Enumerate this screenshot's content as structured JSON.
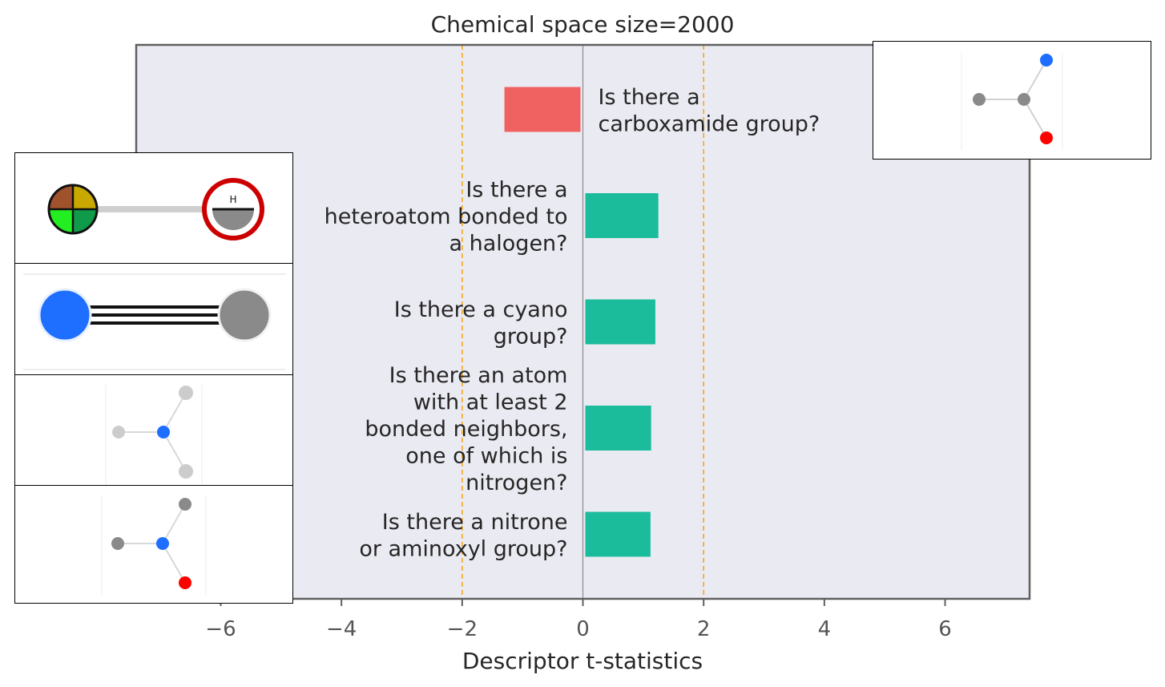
{
  "chart_data": {
    "type": "bar",
    "orientation": "horizontal",
    "title": "Chemical space size=2000",
    "xlabel": "Descriptor t-statistics",
    "ylabel": "",
    "xlim": [
      -7.4,
      7.4
    ],
    "xticks": [
      -6,
      -4,
      -2,
      0,
      2,
      4,
      6
    ],
    "xtick_labels": [
      "−6",
      "−4",
      "−2",
      "0",
      "2",
      "4",
      "6"
    ],
    "significance_lines": [
      -2,
      2
    ],
    "grid": false,
    "bars": [
      {
        "label": "Is there a\ncarboxamide group?",
        "value": -1.3,
        "label_side": "right",
        "color": "#f06262"
      },
      {
        "label": "Is there a\nheteroatom bonded to\na halogen?",
        "value": 1.25,
        "label_side": "left",
        "color": "#1abc9c"
      },
      {
        "label": "Is there a cyano\ngroup?",
        "value": 1.2,
        "label_side": "left",
        "color": "#1abc9c"
      },
      {
        "label": "Is there an atom\nwith at least 2\nbonded neighbors,\none of which is\nnitrogen?",
        "value": 1.13,
        "label_side": "left",
        "color": "#1abc9c"
      },
      {
        "label": "Is there a nitrone\nor aminoxyl group?",
        "value": 1.12,
        "label_side": "left",
        "color": "#1abc9c"
      }
    ]
  },
  "insets": [
    {
      "name": "carboxamide-structure-icon",
      "depicts": "carbon-carbon bonded to nitrogen and oxygen"
    },
    {
      "name": "heteroatom-halogen-structure-icon",
      "depicts": "atom bonded to hydrogen",
      "glyph": "H"
    },
    {
      "name": "cyano-structure-icon",
      "depicts": "nitrogen triple bonded to carbon"
    },
    {
      "name": "nitrogen-neighbors-structure-icon",
      "depicts": "nitrogen with neighbors"
    },
    {
      "name": "nitrone-aminoxyl-structure-icon",
      "depicts": "nitrogen bonded to carbon, carbon and oxygen"
    }
  ],
  "colors": {
    "plot_background": "#eaeaf2",
    "positive_bar": "#1abc9c",
    "negative_bar": "#f06262",
    "threshold_line": "#f5a623",
    "zero_line": "#8c8c8c",
    "frame": "#606060",
    "nitrogen": "#1e6fff",
    "oxygen": "#ff0000",
    "carbon": "#8a8a8a",
    "light_atom": "#cccccc"
  }
}
